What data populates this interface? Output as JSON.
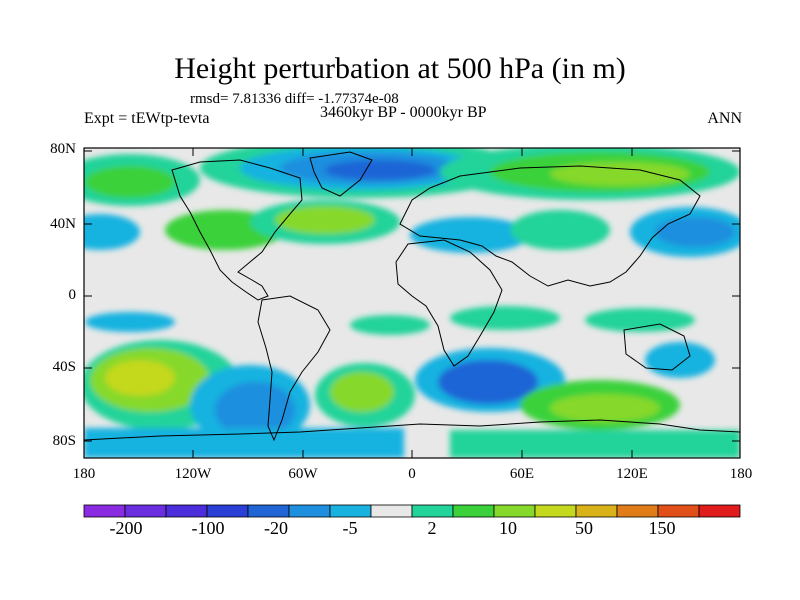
{
  "title": "Height perturbation at 500 hPa (in m)",
  "stats_line": "rmsd= 7.81336 diff= -1.77374e-08",
  "experiment_label": "Expt = tEWtp-tevta",
  "period_label": "3460kyr BP - 0000kyr BP",
  "season_label": "ANN",
  "lat_ticks": [
    "80N",
    "40N",
    "0",
    "40S",
    "80S"
  ],
  "lon_ticks": [
    "180",
    "120W",
    "60W",
    "0",
    "60E",
    "120E",
    "180"
  ],
  "colorbar": {
    "colors": [
      "#8a2be2",
      "#6a2ee0",
      "#4b2ddb",
      "#2a3fd6",
      "#1f65d6",
      "#1d8fde",
      "#19b2e0",
      "#e8e8e8",
      "#22d39a",
      "#3ad13a",
      "#86d92c",
      "#c4d81e",
      "#d9b21a",
      "#e07d19",
      "#e2501a",
      "#e01c1c"
    ],
    "labels": [
      "-200",
      "-100",
      "-20",
      "-5",
      "2",
      "10",
      "50",
      "150"
    ]
  },
  "map_colors": {
    "ocean_background": "#e8e8e8",
    "coastline": "#000000"
  }
}
